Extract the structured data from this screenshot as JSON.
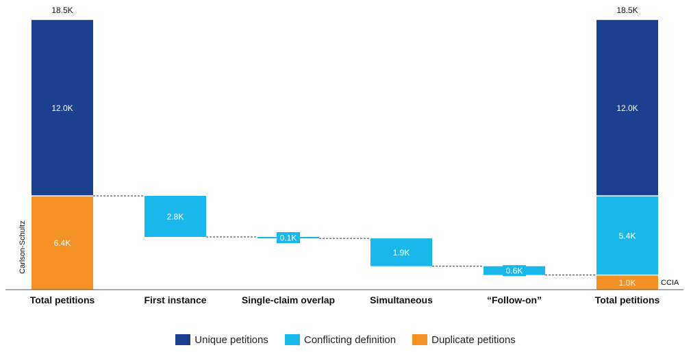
{
  "chart_data": {
    "type": "bar",
    "subtype": "waterfall",
    "categories": [
      "Total petitions",
      "First instance",
      "Single-claim overlap",
      "Simultaneous",
      "“Follow-on”",
      "Total petitions"
    ],
    "series": [
      {
        "name": "Unique petitions",
        "color": "#1a408f"
      },
      {
        "name": "Conflicting definition",
        "color": "#1ab7eb"
      },
      {
        "name": "Duplicate petitions",
        "color": "#f39124"
      }
    ],
    "bars": [
      {
        "category": "Total petitions",
        "total_label": "18.5K",
        "side_label": "Carlson-Schultz",
        "segments": [
          {
            "series": "Duplicate petitions",
            "base": 0,
            "value": 6.4,
            "label": "6.4K"
          },
          {
            "series": "Unique petitions",
            "base": 6.4,
            "value": 12.0,
            "label": "12.0K"
          }
        ]
      },
      {
        "category": "First instance",
        "segments": [
          {
            "series": "Conflicting definition",
            "base": 3.6,
            "value": 2.8,
            "label": "2.8K"
          }
        ]
      },
      {
        "category": "Single-claim overlap",
        "segments": [
          {
            "series": "Conflicting definition",
            "base": 3.5,
            "value": 0.1,
            "label": "0.1K"
          }
        ]
      },
      {
        "category": "Simultaneous",
        "segments": [
          {
            "series": "Conflicting definition",
            "base": 1.6,
            "value": 1.9,
            "label": "1.9K"
          }
        ]
      },
      {
        "category": "“Follow-on”",
        "segments": [
          {
            "series": "Conflicting definition",
            "base": 1.0,
            "value": 0.6,
            "label": "0.6K"
          }
        ]
      },
      {
        "category": "Total petitions",
        "total_label": "18.5K",
        "side_label": "CCIA",
        "segments": [
          {
            "series": "Duplicate petitions",
            "base": 0,
            "value": 1.0,
            "label": "1.0K"
          },
          {
            "series": "Conflicting definition",
            "base": 1.0,
            "value": 5.4,
            "label": "5.4K"
          },
          {
            "series": "Unique petitions",
            "base": 6.4,
            "value": 12.0,
            "label": "12.0K"
          }
        ]
      }
    ],
    "connectors": [
      {
        "from": 0,
        "to": 1,
        "level": 6.4
      },
      {
        "from": 1,
        "to": 2,
        "level": 3.6
      },
      {
        "from": 2,
        "to": 3,
        "level": 3.5
      },
      {
        "from": 3,
        "to": 4,
        "level": 1.6
      },
      {
        "from": 4,
        "to": 5,
        "level": 1.0
      }
    ],
    "ylim": [
      0,
      18.5
    ],
    "grid": false,
    "legend_position": "bottom"
  }
}
